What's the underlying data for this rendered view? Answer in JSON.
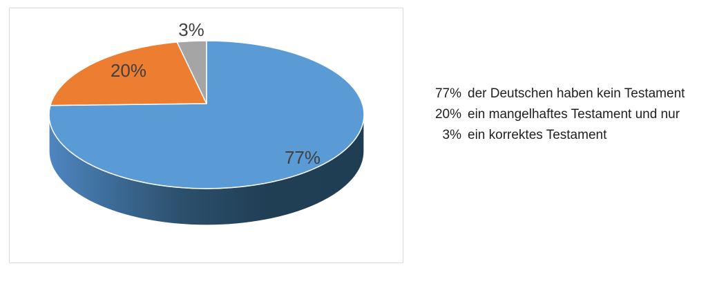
{
  "chart_data": {
    "type": "pie",
    "style": "3d",
    "title": "",
    "legend": "none",
    "direction": "clockwise",
    "start_angle_deg": 0,
    "categories": [
      "kein Testament",
      "mangelhaftes Testament",
      "korrektes Testament"
    ],
    "segments": [
      {
        "label": "77%",
        "value": 77,
        "color": "#5B9BD5"
      },
      {
        "label": "20%",
        "value": 20,
        "color": "#ED7D31"
      },
      {
        "label": "3%",
        "value": 3,
        "color": "#A5A5A5"
      }
    ],
    "data_label_color": "#404040",
    "side_gradient": [
      {
        "offset": 0,
        "color": "#4F86C2"
      },
      {
        "offset": 0.18,
        "color": "#3E6E9B"
      },
      {
        "offset": 0.42,
        "color": "#2C506C"
      },
      {
        "offset": 0.7,
        "color": "#203E54"
      },
      {
        "offset": 1,
        "color": "#1F3D53"
      }
    ],
    "slice_border_color": "#FFFFFF"
  },
  "chart_frame": {
    "border_color": "#D9D9D9",
    "background": "#FFFFFF"
  },
  "annotation": {
    "text_color": "#1F1F1F",
    "lines": [
      {
        "pct": "77%",
        "text": "der Deutschen haben kein Testament"
      },
      {
        "pct": "20%",
        "text": "ein mangelhaftes Testament und nur"
      },
      {
        "pct": "3%",
        "text": "ein korrektes Testament"
      }
    ]
  }
}
